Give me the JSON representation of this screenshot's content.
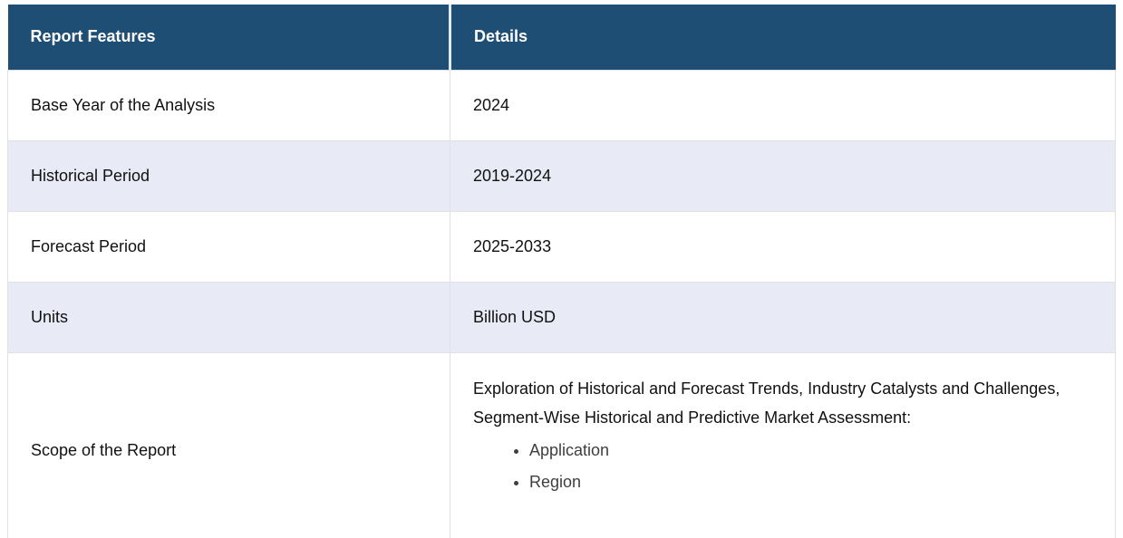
{
  "table": {
    "columns": [
      "Report Features",
      "Details"
    ],
    "rows": [
      {
        "feature": "Base Year of the Analysis",
        "detail": "2024"
      },
      {
        "feature": "Historical Period",
        "detail": "2019-2024"
      },
      {
        "feature": "Forecast Period",
        "detail": "2025-2033"
      },
      {
        "feature": "Units",
        "detail": "Billion USD"
      },
      {
        "feature": "Scope of the Report",
        "detail_paragraph": "Exploration of Historical and Forecast Trends, Industry Catalysts and Challenges, Segment-Wise Historical and Predictive Market Assessment:",
        "detail_bullets": [
          "Application",
          "Region"
        ]
      }
    ]
  },
  "colors": {
    "header_bg": "#1F4E74",
    "header_text": "#FFFFFF",
    "stripe_bg": "#E8EAF5",
    "row_bg": "#FFFFFF",
    "body_text": "#111111",
    "bullet_text": "#3F3F3F",
    "border": "#DFE1E7",
    "header_divider": "#E2E8F0"
  }
}
